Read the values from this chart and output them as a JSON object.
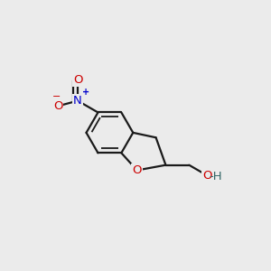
{
  "background_color": "#ebebeb",
  "bond_color": "#1a1a1a",
  "bond_width": 1.6,
  "atom_colors": {
    "O": "#cc0000",
    "N": "#0000cc",
    "C": "#1a1a1a"
  },
  "font_size_atom": 9.5,
  "hcx": 0.36,
  "hcy": 0.52,
  "hr": 0.112
}
